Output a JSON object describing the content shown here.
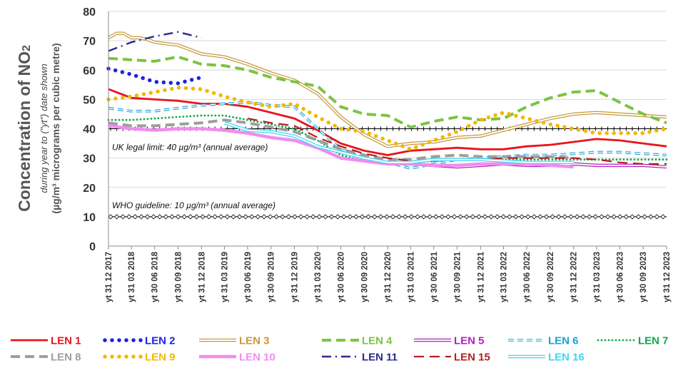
{
  "chart_data": {
    "type": "line",
    "ylabel_main": "Concentration of NO",
    "ylabel_sub": "2",
    "ylabel_note": "during year to (\"yt\") date shown",
    "ylabel_units": "(µg/m³ micrograms per cubic metre)",
    "ylim": [
      0,
      80
    ],
    "yticks": [
      0,
      10,
      20,
      30,
      40,
      50,
      60,
      70,
      80
    ],
    "grid": "horizontal",
    "legend_position": "bottom",
    "xlim": [
      "2017-12-31",
      "2023-12-31"
    ],
    "x_tick_labels": [
      "yt 31 12 2017",
      "yt 31 03 2018",
      "yt 30 06 2018",
      "yt 30 09 2018",
      "yt 31 12 2018",
      "yt 31 03 2019",
      "yt 30 06 2019",
      "yt 30 09 2019",
      "yt 31 12 2019",
      "yt 31 03 2020",
      "yt 30 06 2020",
      "yt 30 09 2020",
      "yt 31 12 2020",
      "yt 31 03 2021",
      "yt 30 06 2021",
      "yt 30 09 2021",
      "yt 31 12 2021",
      "yt 31 03 2022",
      "yt 30 06 2022",
      "yt 30 09 2022",
      "yt 31 12 2022",
      "yt 31 03 2023",
      "yt 30 06 2023",
      "yt 30 09 2023",
      "yt 31 12 2023"
    ],
    "reference_lines": [
      {
        "label": "UK legal limit:  40 µg/m³ (annual average)",
        "y": 40
      },
      {
        "label": "WHO guideline:  10 µg/m³ (annual average)",
        "y": 10
      }
    ],
    "series": [
      {
        "name": "LEN 1",
        "color": "#e8131c",
        "style": "solid",
        "x": [
          "2017-12-31",
          "2018-03-31",
          "2018-06-30",
          "2018-09-30",
          "2018-12-31",
          "2019-03-31",
          "2019-06-30",
          "2019-09-30",
          "2019-12-31",
          "2020-03-31",
          "2020-06-30",
          "2020-09-30",
          "2020-12-31",
          "2021-03-31",
          "2021-06-30",
          "2021-09-30",
          "2021-12-31",
          "2022-03-31",
          "2022-06-30",
          "2022-09-30",
          "2022-12-31",
          "2023-03-31",
          "2023-06-30",
          "2023-09-30",
          "2023-12-31"
        ],
        "y": [
          53.5,
          50.5,
          50,
          49.5,
          48.5,
          48.5,
          47.5,
          45.5,
          43.5,
          39.5,
          35,
          32.5,
          31,
          32.5,
          33,
          33.5,
          33,
          33,
          34,
          34.5,
          35.5,
          36.5,
          36,
          35,
          34
        ]
      },
      {
        "name": "LEN 2",
        "color": "#1f23e0",
        "style": "dots",
        "x": [
          "2017-12-31",
          "2018-03-31",
          "2018-06-30",
          "2018-09-30",
          "2018-12-31"
        ],
        "y": [
          60.5,
          58.5,
          56,
          55.5,
          57.5
        ]
      },
      {
        "name": "LEN 3",
        "color": "#c49a3d",
        "style": "double",
        "x": [
          "2017-12-31",
          "2018-01-31",
          "2018-02-28",
          "2018-03-31",
          "2018-04-30",
          "2018-05-31",
          "2018-06-30",
          "2018-09-30",
          "2018-12-31",
          "2019-03-31",
          "2019-06-30",
          "2019-09-30",
          "2019-12-31",
          "2020-03-31",
          "2020-06-30",
          "2020-09-30",
          "2020-12-31",
          "2021-03-31",
          "2021-06-30",
          "2021-09-30",
          "2021-12-31",
          "2022-03-31",
          "2022-06-30",
          "2022-09-30",
          "2022-12-31",
          "2023-03-31",
          "2023-06-30",
          "2023-09-30",
          "2023-12-31"
        ],
        "y": [
          71,
          72.5,
          72.5,
          71,
          71,
          70.5,
          69.5,
          68.5,
          65.5,
          64.5,
          62,
          59,
          56.5,
          52,
          44,
          38,
          34,
          35,
          35.5,
          37,
          37.5,
          39.5,
          41.5,
          43.5,
          45,
          45.5,
          45,
          44.5,
          44
        ]
      },
      {
        "name": "LEN 4",
        "color": "#7dc342",
        "style": "dashed",
        "x": [
          "2017-12-31",
          "2018-03-31",
          "2018-06-30",
          "2018-09-30",
          "2018-12-31",
          "2019-03-31",
          "2019-06-30",
          "2019-09-30",
          "2019-12-31",
          "2020-03-31",
          "2020-06-30",
          "2020-09-30",
          "2020-12-31",
          "2021-03-31",
          "2021-06-30",
          "2021-09-30",
          "2021-12-31",
          "2022-03-31",
          "2022-06-30",
          "2022-09-30",
          "2022-12-31",
          "2023-03-31",
          "2023-06-30",
          "2023-09-30",
          "2023-12-31"
        ],
        "y": [
          64,
          63.5,
          63,
          64.5,
          62,
          61.5,
          60,
          57.5,
          56,
          54.5,
          47.5,
          45,
          44.5,
          40.5,
          42.5,
          44,
          43,
          43.5,
          47.5,
          50.5,
          52.5,
          53,
          49,
          45,
          42
        ]
      },
      {
        "name": "LEN 5",
        "color": "#b21fc2",
        "style": "double",
        "x": [
          "2020-09-30",
          "2020-12-31",
          "2021-03-31",
          "2021-06-30",
          "2021-09-30",
          "2021-12-31",
          "2022-03-31",
          "2022-06-30",
          "2022-09-30",
          "2022-12-31",
          "2023-03-31",
          "2023-06-30",
          "2023-09-30",
          "2023-12-31"
        ],
        "y": [
          29,
          28.5,
          28,
          27.5,
          27,
          27.5,
          28,
          27.5,
          27.5,
          28,
          27.5,
          27.5,
          27.5,
          27
        ]
      },
      {
        "name": "LEN 6",
        "color": "#1aa0d8",
        "style": "double-dashed",
        "x": [
          "2017-12-31",
          "2018-03-31",
          "2018-06-30",
          "2018-09-30",
          "2018-12-31",
          "2019-03-31",
          "2019-06-30",
          "2019-09-30",
          "2019-12-31",
          "2020-03-31",
          "2020-06-30",
          "2020-09-30",
          "2020-12-31",
          "2021-03-31",
          "2021-06-30",
          "2021-09-30",
          "2021-12-31",
          "2022-03-31",
          "2022-06-30",
          "2022-09-30",
          "2022-12-31",
          "2023-03-31",
          "2023-06-30",
          "2023-09-30",
          "2023-12-31"
        ],
        "y": [
          47,
          46,
          46,
          47,
          48,
          48.5,
          49,
          48,
          47.5,
          40,
          33,
          30,
          28.5,
          26.5,
          28,
          29.5,
          30,
          30.5,
          31,
          31,
          31.5,
          32,
          32,
          31.5,
          31
        ]
      },
      {
        "name": "LEN 7",
        "color": "#11a84a",
        "style": "dotted",
        "x": [
          "2017-12-31",
          "2018-03-31",
          "2018-06-30",
          "2018-09-30",
          "2018-12-31",
          "2019-03-31",
          "2019-06-30",
          "2019-09-30",
          "2019-12-31",
          "2020-03-31",
          "2020-06-30",
          "2020-09-30",
          "2020-12-31",
          "2021-03-31",
          "2021-06-30",
          "2021-09-30",
          "2021-12-31",
          "2022-03-31",
          "2022-06-30",
          "2022-09-30",
          "2022-12-31",
          "2023-03-31",
          "2023-06-30",
          "2023-09-30",
          "2023-12-31"
        ],
        "y": [
          43,
          43,
          43.5,
          44,
          44.5,
          44.5,
          43,
          41.5,
          40,
          36,
          31,
          29,
          28.5,
          28.5,
          29,
          29.5,
          29.5,
          29.5,
          29.5,
          29.5,
          29.5,
          29.5,
          29.5,
          29.5,
          29.5
        ]
      },
      {
        "name": "LEN 8",
        "color": "#9e9e9e",
        "style": "dashed",
        "x": [
          "2017-12-31",
          "2018-03-31",
          "2018-06-30",
          "2018-09-30",
          "2018-12-31",
          "2019-03-31",
          "2019-06-30",
          "2019-09-30",
          "2019-12-31",
          "2020-03-31",
          "2020-06-30",
          "2020-09-30",
          "2020-12-31",
          "2021-03-31",
          "2021-06-30",
          "2021-09-30",
          "2021-12-31",
          "2022-03-31",
          "2022-06-30",
          "2022-09-30",
          "2022-12-31"
        ],
        "y": [
          42,
          41,
          41,
          41.5,
          42,
          43,
          42,
          40.5,
          39,
          36,
          33,
          31,
          29.5,
          29.5,
          30.5,
          31,
          30.5,
          30.5,
          30.5,
          30.5,
          30
        ]
      },
      {
        "name": "LEN 9",
        "color": "#f2b705",
        "style": "dots",
        "x": [
          "2017-12-31",
          "2018-03-31",
          "2018-06-30",
          "2018-09-30",
          "2018-12-31",
          "2019-03-31",
          "2019-06-30",
          "2019-09-30",
          "2019-12-31",
          "2020-03-31",
          "2020-06-30",
          "2020-09-30",
          "2020-12-31",
          "2021-03-31",
          "2021-06-30",
          "2021-09-30",
          "2021-12-31",
          "2022-03-31",
          "2022-06-30",
          "2022-09-30",
          "2022-12-31",
          "2023-03-31",
          "2023-06-30",
          "2023-09-30",
          "2023-12-31"
        ],
        "y": [
          50,
          51,
          52.5,
          54,
          53.5,
          51,
          49,
          47.5,
          48.5,
          44,
          40,
          39,
          36,
          33,
          36,
          39,
          43,
          45.5,
          43.5,
          41.5,
          40,
          38.5,
          38.5,
          38.5,
          40
        ]
      },
      {
        "name": "LEN 10",
        "color": "#f28cf0",
        "style": "solid-thick",
        "x": [
          "2017-12-31",
          "2018-03-31",
          "2018-06-30",
          "2018-09-30",
          "2018-12-31",
          "2019-03-31",
          "2019-06-30",
          "2019-09-30",
          "2019-12-31",
          "2020-03-31",
          "2020-06-30",
          "2020-09-30",
          "2020-12-31",
          "2021-03-31",
          "2021-06-30",
          "2021-09-30",
          "2021-12-31",
          "2022-03-31",
          "2022-06-30",
          "2022-09-30",
          "2022-12-31"
        ],
        "y": [
          41,
          40,
          39.5,
          40,
          40,
          39.5,
          38.5,
          37,
          36,
          33.5,
          30,
          29,
          28,
          28,
          27.5,
          27.5,
          28,
          28,
          28,
          27.5,
          27
        ]
      },
      {
        "name": "LEN 11",
        "color": "#2a2a8c",
        "style": "dash-dot",
        "x": [
          "2017-12-31",
          "2018-03-31",
          "2018-06-30",
          "2018-09-30",
          "2018-12-31"
        ],
        "y": [
          66.5,
          69.5,
          71.5,
          73,
          71
        ]
      },
      {
        "name": "LEN 15",
        "color": "#b21f1f",
        "style": "long-dash",
        "x": [
          "2019-06-30",
          "2019-09-30",
          "2019-12-31",
          "2020-03-31",
          "2020-06-30",
          "2020-09-30",
          "2020-12-31",
          "2021-03-31",
          "2021-06-30",
          "2021-09-30",
          "2021-12-31",
          "2022-03-31",
          "2022-06-30",
          "2022-09-30",
          "2022-12-31",
          "2023-03-31",
          "2023-06-30",
          "2023-09-30",
          "2023-12-31"
        ],
        "y": [
          43.5,
          42,
          41,
          37,
          34,
          31.5,
          30,
          29,
          29,
          29.5,
          29.5,
          30,
          30,
          30,
          30,
          29.5,
          28.5,
          28,
          28
        ]
      },
      {
        "name": "LEN 16",
        "color": "#40d8f0",
        "style": "double",
        "x": [
          "2019-03-31",
          "2019-06-30",
          "2019-09-30",
          "2019-12-31",
          "2020-03-31",
          "2020-06-30",
          "2020-09-30",
          "2020-12-31",
          "2021-03-31",
          "2021-06-30",
          "2021-09-30",
          "2021-12-31",
          "2022-03-31",
          "2022-06-30",
          "2022-09-30",
          "2022-12-31"
        ],
        "y": [
          42,
          39.5,
          39,
          37.5,
          34,
          32,
          30,
          28.5,
          28.5,
          29.5,
          29.5,
          29.5,
          29,
          28.5,
          28.5,
          28.5
        ]
      }
    ]
  }
}
